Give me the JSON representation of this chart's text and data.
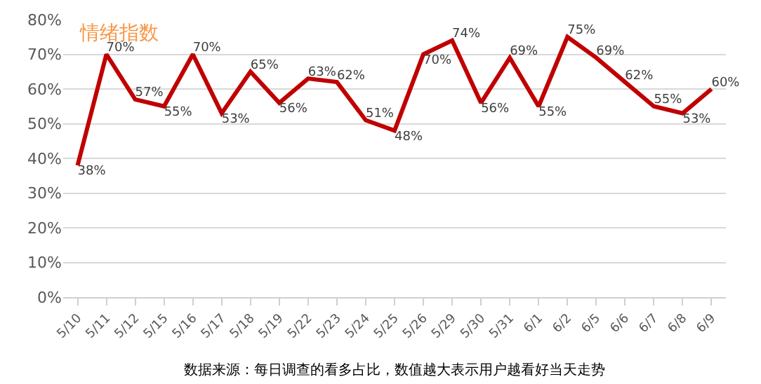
{
  "chart_data": {
    "type": "line",
    "title": "情绪指数",
    "categories": [
      "5/10",
      "5/11",
      "5/12",
      "5/15",
      "5/16",
      "5/17",
      "5/18",
      "5/19",
      "5/22",
      "5/23",
      "5/24",
      "5/25",
      "5/26",
      "5/29",
      "5/30",
      "5/31",
      "6/1",
      "6/2",
      "6/5",
      "6/6",
      "6/7",
      "6/8",
      "6/9"
    ],
    "series": [
      {
        "color": "#c00000",
        "values": [
          38,
          70,
          57,
          55,
          70,
          53,
          65,
          56,
          63,
          62,
          51,
          48,
          70,
          74,
          56,
          69,
          55,
          75,
          69,
          62,
          55,
          53,
          60
        ],
        "value_labels": [
          "38%",
          "70%",
          "57%",
          "55%",
          "70%",
          "53%",
          "65%",
          "56%",
          "63%",
          "62%",
          "51%",
          "48%",
          "70%",
          "74%",
          "56%",
          "69%",
          "55%",
          "75%",
          "69%",
          "62%",
          "55%",
          "53%",
          "60%"
        ]
      }
    ],
    "ylim": [
      0,
      80
    ],
    "yticks": [
      {
        "value": 0,
        "label": "0%"
      },
      {
        "value": 10,
        "label": "10%"
      },
      {
        "value": 20,
        "label": "20%"
      },
      {
        "value": 30,
        "label": "30%"
      },
      {
        "value": 40,
        "label": "40%"
      },
      {
        "value": 50,
        "label": "50%"
      },
      {
        "value": 60,
        "label": "60%"
      },
      {
        "value": 70,
        "label": "70%"
      },
      {
        "value": 80,
        "label": "80%"
      }
    ],
    "grid": "y",
    "marker": "none",
    "line_style": "solid",
    "annotations": [
      "数据来源：每日调查的看多占比，数值越大表示用户越看好当天走势"
    ]
  }
}
